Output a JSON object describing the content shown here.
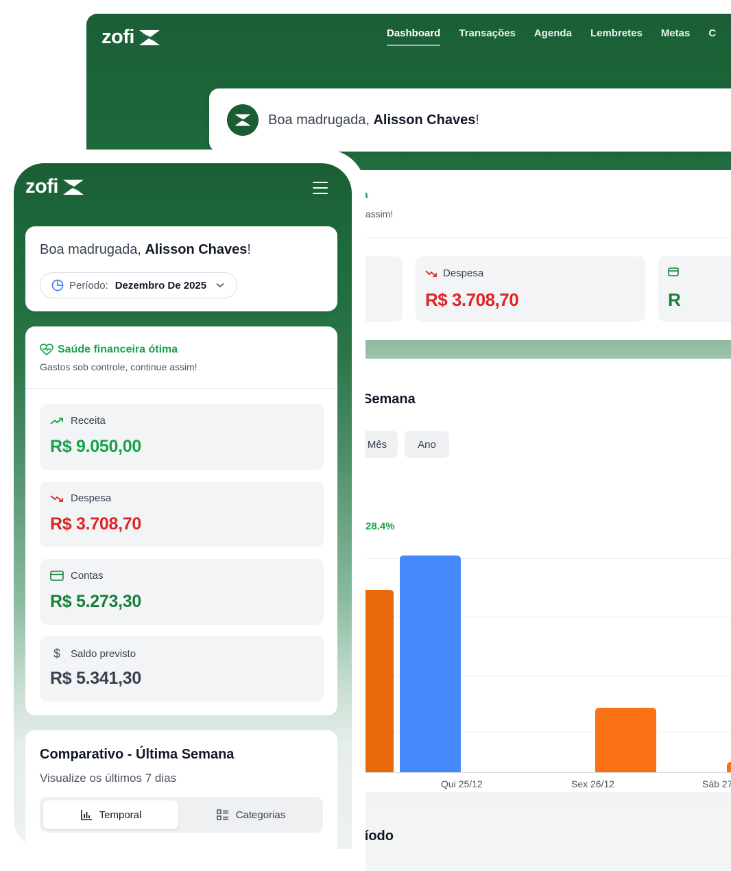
{
  "brand": {
    "name": "zofi"
  },
  "desktop": {
    "nav": [
      "Dashboard",
      "Transações",
      "Agenda",
      "Lembretes",
      "Metas",
      "C"
    ],
    "greeting": {
      "prefix": "Boa madrugada, ",
      "name": "Alisson Chaves",
      "suffix": "!"
    },
    "health": {
      "title_partial": "na",
      "subtitle_partial": "ie assim!"
    },
    "stats": {
      "despesa": {
        "label": "Despesa",
        "value": "R$ 3.708,70"
      },
      "partial_value": "R"
    },
    "chart": {
      "title_partial": "Semana",
      "tabs": [
        "Mês",
        "Ano"
      ],
      "percent": "28.4%"
    },
    "periodo_partial": "ríodo"
  },
  "mobile": {
    "greeting": {
      "prefix": "Boa madrugada, ",
      "name": "Alisson Chaves",
      "suffix": "!"
    },
    "periodo": {
      "label": "Período:",
      "value": "Dezembro De 2025"
    },
    "health": {
      "title": "Saúde financeira ótima",
      "subtitle": "Gastos sob controle, continue assim!"
    },
    "stats": [
      {
        "label": "Receita",
        "value": "R$ 9.050,00",
        "color": "#16a34a",
        "icon": "trend-up-icon"
      },
      {
        "label": "Despesa",
        "value": "R$ 3.708,70",
        "color": "#dc2626",
        "icon": "trend-down-icon"
      },
      {
        "label": "Contas",
        "value": "R$ 5.273,30",
        "color": "#15803d",
        "icon": "card-icon"
      },
      {
        "label": "Saldo previsto",
        "value": "R$ 5.341,30",
        "color": "#374151",
        "icon": "dollar-icon"
      }
    ],
    "comparativo": {
      "title": "Comparativo - Última Semana",
      "subtitle": "Visualize os últimos 7 dias",
      "tabs": [
        "Temporal",
        "Categorias"
      ]
    }
  },
  "colors": {
    "brand_green": "#1b5e35",
    "income": "#16a34a",
    "expense": "#dc2626",
    "bar_orange": "#f97316",
    "bar_blue": "#4589fb"
  },
  "chart_data": {
    "type": "bar",
    "categories": [
      "Qui 25/12",
      "Sex 26/12",
      "Sáb 27"
    ],
    "ylabel": "",
    "xlabel": ""
  }
}
